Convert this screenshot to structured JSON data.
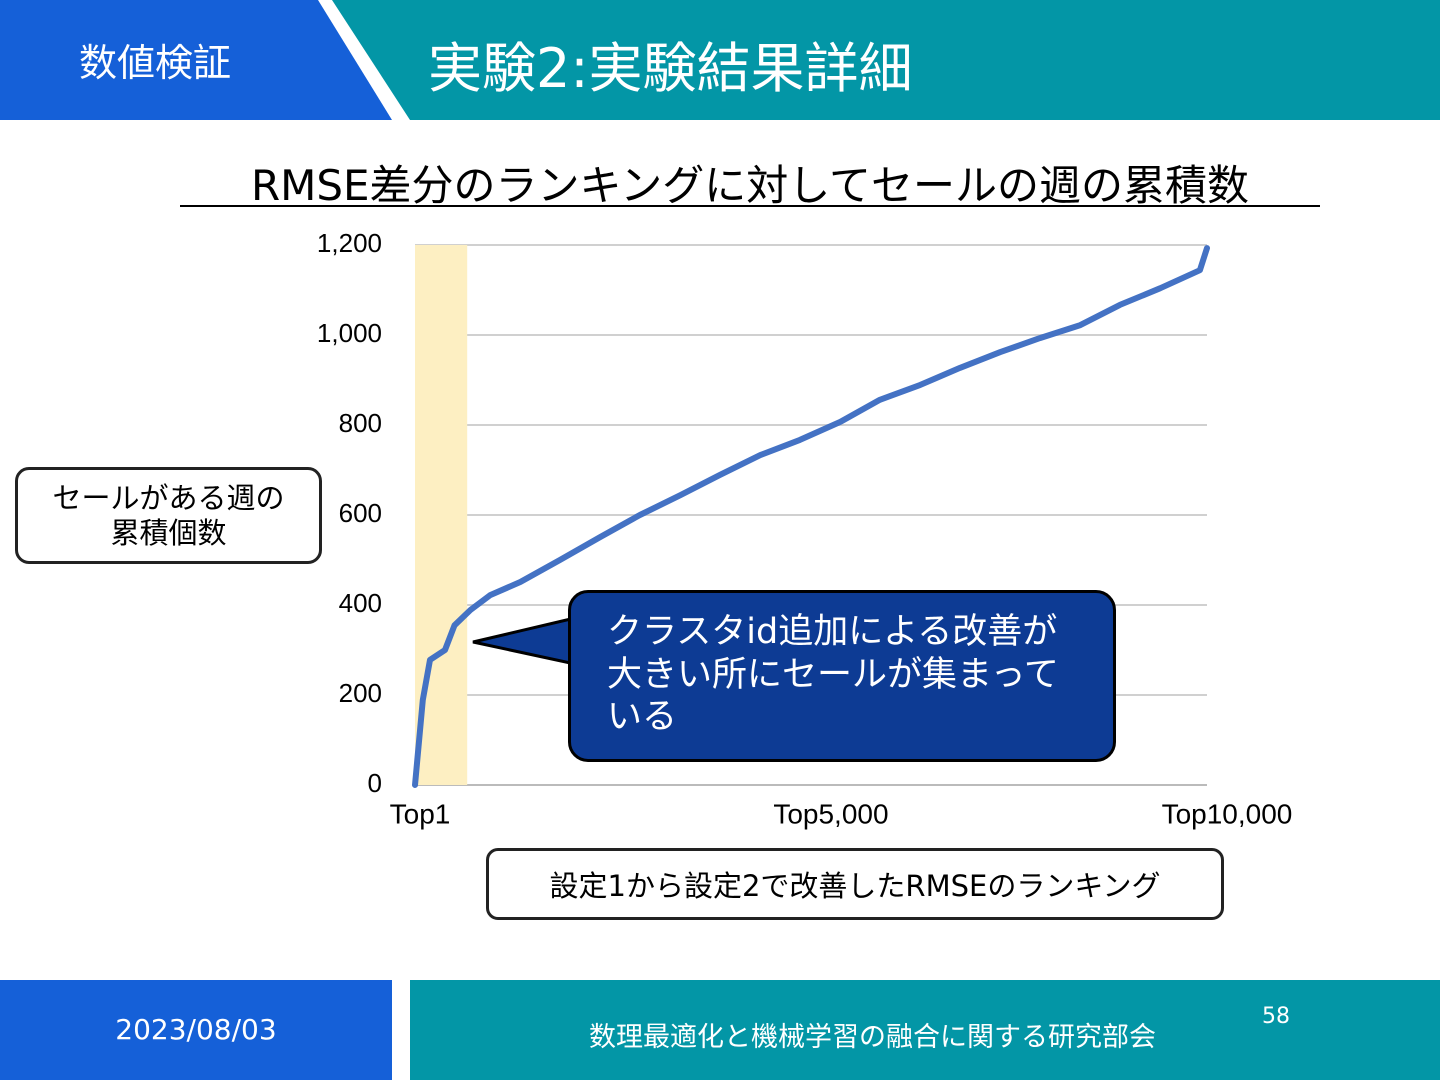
{
  "header": {
    "section": "数値検証",
    "title": "実験2:実験結果詳細"
  },
  "chart_data": {
    "type": "line",
    "title": "RMSE差分のランキングに対してセールの週の累積数",
    "y_label_lines": [
      "セールがある週の",
      "累積個数"
    ],
    "x_label": "設定1から設定2で改善したRMSEのランキング",
    "annotation": "クラスタid追加による改善が大きい所にセールが集まっている",
    "x": [
      1,
      100,
      190,
      380,
      500,
      700,
      950,
      1330,
      1830,
      2340,
      2840,
      3350,
      3850,
      4360,
      4860,
      5370,
      5870,
      6380,
      6880,
      7390,
      7890,
      8400,
      8900,
      9410,
      9910,
      10000
    ],
    "values": [
      0,
      189,
      278,
      300,
      355,
      389,
      422,
      451,
      500,
      551,
      600,
      644,
      689,
      733,
      767,
      807,
      856,
      889,
      927,
      962,
      993,
      1022,
      1067,
      1104,
      1144,
      1193
    ],
    "color": "#4472c4",
    "xlim": [
      1,
      10000
    ],
    "xticks": [
      {
        "value": 1,
        "label": "Top1"
      },
      {
        "value": 5000,
        "label": "Top5,000"
      },
      {
        "value": 10000,
        "label": "Top10,000"
      }
    ],
    "ylim": [
      0,
      1200
    ],
    "yticks": [
      0,
      200,
      400,
      600,
      800,
      {
        "value": 1000,
        "label": "1,000"
      },
      {
        "value": 1200,
        "label": "1,200"
      }
    ],
    "grid": true,
    "highlight_x": [
      1,
      660
    ],
    "highlight_color": "#fdefc2"
  },
  "footer": {
    "date": "2023/08/03",
    "organization": "数理最適化と機械学習の融合に関する研究部会",
    "page": "58"
  }
}
